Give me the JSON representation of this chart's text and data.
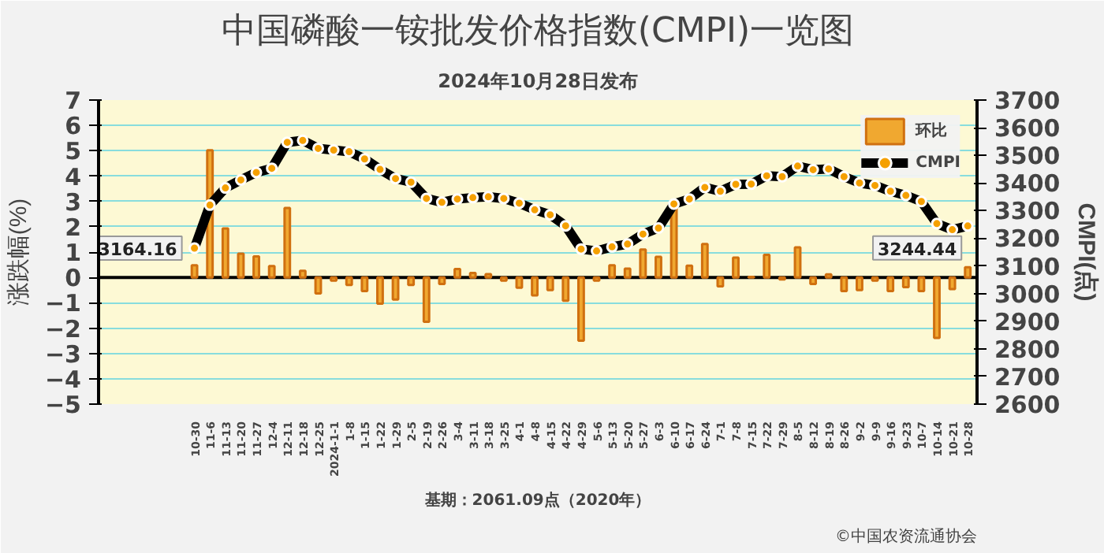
{
  "chart_data": {
    "type": "bar",
    "title": "中国磷酸一铵批发价格指数(CMPI)一览图",
    "subtitle": "2024年10月28日发布",
    "ylabel": "涨跌幅(%)",
    "y2label": "CMPI(点)",
    "categories": [
      "10-30",
      "11-6",
      "11-13",
      "11-20",
      "11-27",
      "12-4",
      "12-11",
      "12-18",
      "12-25",
      "2024-1-1",
      "1-8",
      "1-15",
      "1-22",
      "1-29",
      "2-5",
      "2-19",
      "2-26",
      "3-4",
      "3-11",
      "3-18",
      "3-25",
      "4-1",
      "4-8",
      "4-15",
      "4-22",
      "4-29",
      "5-6",
      "5-13",
      "5-20",
      "5-27",
      "6-3",
      "6-10",
      "6-17",
      "6-24",
      "7-1",
      "7-8",
      "7-15",
      "7-22",
      "7-29",
      "8-5",
      "8-12",
      "8-19",
      "8-26",
      "9-2",
      "9-9",
      "9-16",
      "9-23",
      "10-7",
      "10-14",
      "10-21",
      "10-28"
    ],
    "series": [
      {
        "name": "环比",
        "color": "#f0a830",
        "values": [
          0.48,
          5.02,
          1.93,
          0.94,
          0.83,
          0.45,
          2.74,
          0.26,
          -0.63,
          -0.13,
          -0.3,
          -0.54,
          -1.04,
          -0.87,
          -0.3,
          -1.75,
          -0.26,
          0.33,
          0.18,
          0.13,
          -0.13,
          -0.41,
          -0.71,
          -0.5,
          -0.92,
          -2.5,
          -0.13,
          0.48,
          0.35,
          1.1,
          0.81,
          2.74,
          0.46,
          1.32,
          -0.35,
          0.78,
          0.02,
          0.89,
          -0.08,
          1.19,
          -0.26,
          0.12,
          -0.54,
          -0.5,
          -0.13,
          -0.54,
          -0.38,
          -0.54,
          -2.39,
          -0.46,
          0.4
        ]
      },
      {
        "name": "CMPI",
        "type": "line",
        "axis": "y2",
        "color": "#000000",
        "marker": "circle",
        "value_labels": [
          "3164.16",
          null,
          null,
          null,
          null,
          null,
          null,
          null,
          null,
          null,
          null,
          null,
          null,
          null,
          null,
          null,
          null,
          null,
          null,
          null,
          null,
          null,
          null,
          null,
          null,
          null,
          null,
          null,
          null,
          null,
          null,
          null,
          null,
          null,
          null,
          null,
          null,
          null,
          null,
          null,
          null,
          null,
          null,
          null,
          null,
          null,
          null,
          null,
          null,
          null,
          "3244.44"
        ],
        "values": [
          3164.16,
          3320,
          3382,
          3411,
          3438,
          3453,
          3547,
          3554,
          3525,
          3519,
          3513,
          3487,
          3449,
          3416,
          3403,
          3344,
          3330,
          3342,
          3347,
          3350,
          3344,
          3327,
          3303,
          3285,
          3245,
          3161,
          3154,
          3169,
          3179,
          3215,
          3237,
          3324,
          3342,
          3384,
          3370,
          3395,
          3396,
          3426,
          3423,
          3461,
          3448,
          3451,
          3423,
          3400,
          3391,
          3370,
          3355,
          3333,
          3253,
          3231,
          3244.44
        ]
      }
    ],
    "ylim": [
      -5,
      7
    ],
    "yticks": [
      -5,
      -4,
      -3,
      -2,
      -1,
      0,
      1,
      2,
      3,
      4,
      5,
      6,
      7
    ],
    "y2lim": [
      2600,
      3700
    ],
    "y2ticks": [
      2600,
      2700,
      2800,
      2900,
      3000,
      3100,
      3200,
      3300,
      3400,
      3500,
      3600,
      3700
    ],
    "grid": "y",
    "legend": "top right",
    "annotations": [
      "基期：2061.09点（2020年）",
      "©中国农资流通协会"
    ]
  }
}
